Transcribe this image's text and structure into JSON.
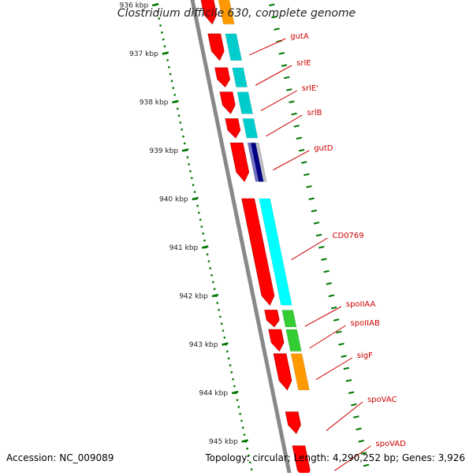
{
  "title": "Clostridium difficile 630, complete genome",
  "footer": {
    "accession": "Accession: NC_009089",
    "summary": "Topology: circular; Length: 4,290,252 bp; Genes: 3,926"
  },
  "colors": {
    "background": "#ffffff",
    "backbone": "#888888",
    "gene_forward": "#ff0000",
    "gene_label": "#cc0000",
    "scale_tick": "#007700",
    "cog_orange": "#ff9900",
    "cog_cyan": "#00cccc",
    "cog_bright_cyan": "#00ffff",
    "cog_green": "#33cc33",
    "cog_navy": "#000080",
    "cog_slate": "#7070c0",
    "cog_gray": "#c0c0c0"
  },
  "scale": {
    "ticks": [
      {
        "label": "936 kbp",
        "kbp": 936
      },
      {
        "label": "937 kbp",
        "kbp": 937
      },
      {
        "label": "938 kbp",
        "kbp": 938
      },
      {
        "label": "939 kbp",
        "kbp": 939
      },
      {
        "label": "940 kbp",
        "kbp": 940
      },
      {
        "label": "941 kbp",
        "kbp": 941
      },
      {
        "label": "942 kbp",
        "kbp": 942
      },
      {
        "label": "943 kbp",
        "kbp": 943
      },
      {
        "label": "944 kbp",
        "kbp": 944
      },
      {
        "label": "945 kbp",
        "kbp": 945
      }
    ]
  },
  "genes": [
    {
      "start": 935.7,
      "end": 936.4,
      "strand": "forward",
      "cog": "cog_orange"
    },
    {
      "start": 936.6,
      "end": 937.15,
      "strand": "forward",
      "cog": "cog_cyan"
    },
    {
      "start": 937.3,
      "end": 937.7,
      "strand": "forward",
      "cog": "cog_cyan"
    },
    {
      "start": 937.8,
      "end": 938.25,
      "strand": "forward",
      "cog": "cog_cyan"
    },
    {
      "start": 938.35,
      "end": 938.75,
      "strand": "forward",
      "cog": "cog_cyan"
    },
    {
      "start": 938.85,
      "end": 939.65,
      "strand": "forward",
      "cog": "cog_navy"
    },
    {
      "start": 940.0,
      "end": 942.2,
      "strand": "forward",
      "cog": "cog_bright_cyan"
    },
    {
      "start": 942.3,
      "end": 942.65,
      "strand": "forward",
      "cog": "cog_green"
    },
    {
      "start": 942.7,
      "end": 943.15,
      "strand": "forward",
      "cog": "cog_green"
    },
    {
      "start": 943.2,
      "end": 943.95,
      "strand": "forward",
      "cog": "cog_orange"
    },
    {
      "start": 944.4,
      "end": 944.85,
      "strand": "forward",
      "cog": "none"
    },
    {
      "start": 945.1,
      "end": 945.8,
      "strand": "forward",
      "cog": "none"
    }
  ],
  "labels": [
    {
      "text": "gutA",
      "gene_index": 1
    },
    {
      "text": "srlE",
      "gene_index": 2
    },
    {
      "text": "srlE'",
      "gene_index": 3
    },
    {
      "text": "srlB",
      "gene_index": 4
    },
    {
      "text": "gutD",
      "gene_index": 5
    },
    {
      "text": "CD0769",
      "gene_index": 6
    },
    {
      "text": "spoIIAA",
      "gene_index": 7
    },
    {
      "text": "spoIIAB",
      "gene_index": 8
    },
    {
      "text": "sigF",
      "gene_index": 9
    },
    {
      "text": "spoVAC",
      "gene_index": 10
    },
    {
      "text": "spoVAD",
      "gene_index": 11
    }
  ]
}
